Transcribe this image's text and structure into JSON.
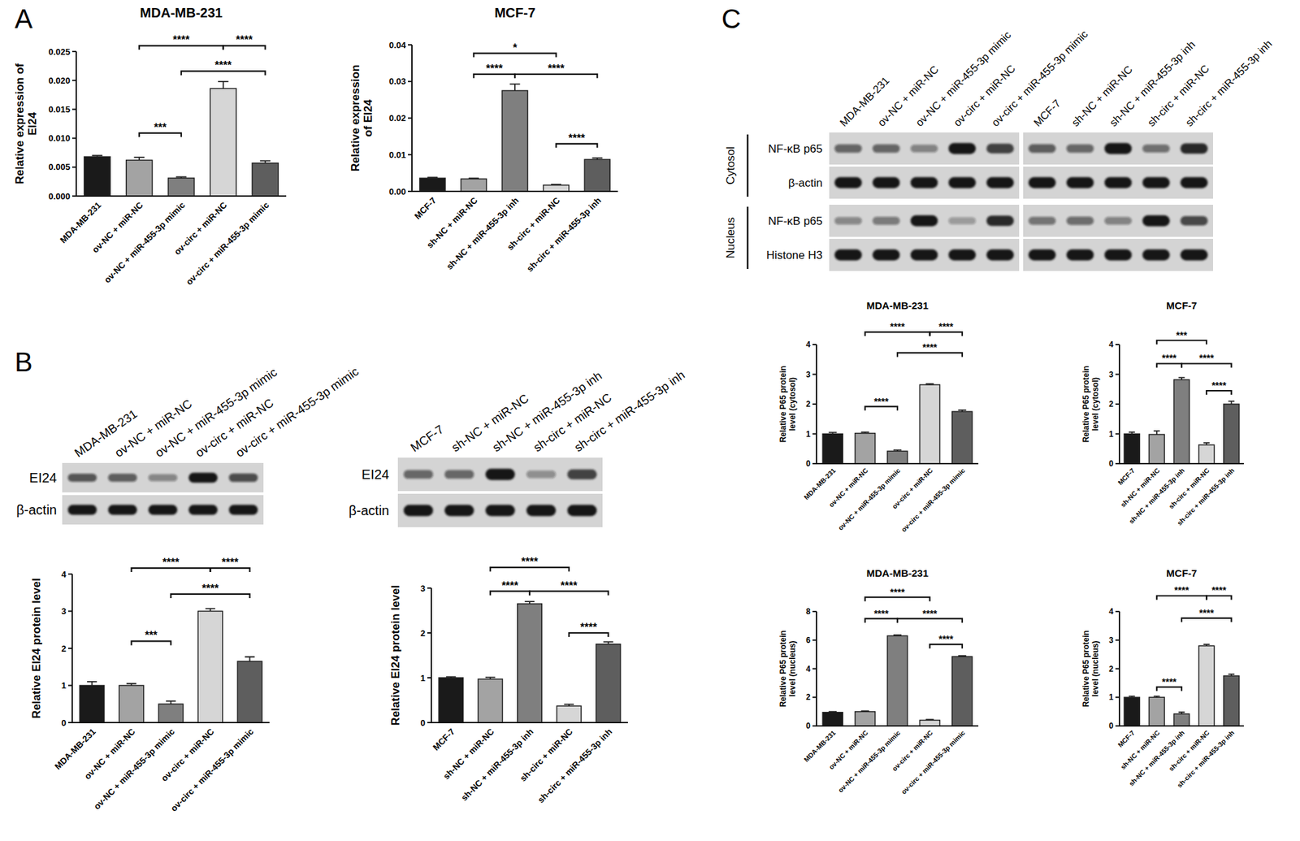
{
  "panels": [
    "A",
    "B",
    "C"
  ],
  "chart_data": [
    {
      "type": "bar",
      "title": "MDA-MB-231",
      "y_label": "Relative expression of\nEI24",
      "categories": [
        "MDA-MB-231",
        "ov-NC + miR-NC",
        "ov-NC + miR-455-3p mimic",
        "ov-circ + miR-NC",
        "ov-circ + miR-455-3p mimic"
      ],
      "values": [
        0.0068,
        0.0062,
        0.0031,
        0.0186,
        0.0057
      ],
      "errors": [
        0.0002,
        0.0005,
        0.0002,
        0.0012,
        0.0004
      ],
      "colors": [
        "#1a1a1a",
        "#a3a3a3",
        "#7f7f7f",
        "#d6d6d6",
        "#5e5e5e"
      ],
      "ylim": [
        0,
        0.025
      ],
      "yticks": [
        {
          "value": 0,
          "label": "0.000"
        },
        {
          "value": 0.005,
          "label": "0.005"
        },
        {
          "value": 0.01,
          "label": "0.010"
        },
        {
          "value": 0.015,
          "label": "0.015"
        },
        {
          "value": 0.02,
          "label": "0.020"
        },
        {
          "value": 0.025,
          "label": "0.025"
        }
      ],
      "annotations": [
        {
          "from": 1,
          "to": 3,
          "y": 0.026,
          "label": "****"
        },
        {
          "from": 3,
          "to": 4,
          "y": 0.026,
          "label": "****"
        },
        {
          "from": 2,
          "to": 4,
          "y": 0.0216,
          "label": "****"
        },
        {
          "from": 1,
          "to": 2,
          "y": 0.0109,
          "label": "***"
        }
      ]
    },
    {
      "type": "bar",
      "title": "MCF-7",
      "y_label": "Relative expression\nof EI24",
      "categories": [
        "MCF-7",
        "sh-NC + miR-NC",
        "sh-NC + miR-455-3p inh",
        "sh-circ + miR-NC",
        "sh-circ + miR-455-3p inh"
      ],
      "values": [
        0.0036,
        0.0034,
        0.0275,
        0.0017,
        0.0087
      ],
      "errors": [
        0.0002,
        0.0002,
        0.0018,
        0.0002,
        0.0004
      ],
      "colors": [
        "#1a1a1a",
        "#a3a3a3",
        "#7f7f7f",
        "#d6d6d6",
        "#5e5e5e"
      ],
      "ylim": [
        0,
        0.04
      ],
      "yticks": [
        {
          "value": 0,
          "label": "0.00"
        },
        {
          "value": 0.01,
          "label": "0.01"
        },
        {
          "value": 0.02,
          "label": "0.02"
        },
        {
          "value": 0.03,
          "label": "0.03"
        },
        {
          "value": 0.04,
          "label": "0.04"
        }
      ],
      "annotations": [
        {
          "from": 1,
          "to": 3,
          "y": 0.0377,
          "label": "*"
        },
        {
          "from": 1,
          "to": 2,
          "y": 0.032,
          "label": "****"
        },
        {
          "from": 2,
          "to": 4,
          "y": 0.032,
          "label": "****"
        },
        {
          "from": 3,
          "to": 4,
          "y": 0.013,
          "label": "****"
        }
      ]
    },
    {
      "type": "bar",
      "y_label": "Relative EI24 protein level",
      "categories": [
        "MDA-MB-231",
        "ov-NC + miR-NC",
        "ov-NC + miR-455-3p mimic",
        "ov-circ + miR-NC",
        "ov-circ + miR-455-3p mimic"
      ],
      "values": [
        1.0,
        1.0,
        0.5,
        3.0,
        1.65
      ],
      "errors": [
        0.1,
        0.05,
        0.08,
        0.07,
        0.12
      ],
      "colors": [
        "#1a1a1a",
        "#a3a3a3",
        "#7f7f7f",
        "#d6d6d6",
        "#5e5e5e"
      ],
      "ylim": [
        0,
        4
      ],
      "yticks": [
        0,
        1,
        2,
        3,
        4
      ],
      "annotations": [
        {
          "from": 1,
          "to": 3,
          "y": 4.16,
          "label": "****"
        },
        {
          "from": 3,
          "to": 4,
          "y": 4.16,
          "label": "****"
        },
        {
          "from": 2,
          "to": 4,
          "y": 3.46,
          "label": "****"
        },
        {
          "from": 1,
          "to": 2,
          "y": 2.19,
          "label": "***"
        }
      ]
    },
    {
      "type": "bar",
      "y_label": "Relative EI24 protein level",
      "categories": [
        "MCF-7",
        "sh-NC + miR-NC",
        "sh-NC + miR-455-3p inh",
        "sh-circ + miR-NC",
        "sh-circ + miR-455-3p inh"
      ],
      "values": [
        1.0,
        0.97,
        2.65,
        0.37,
        1.75
      ],
      "errors": [
        0.02,
        0.04,
        0.05,
        0.04,
        0.05
      ],
      "colors": [
        "#1a1a1a",
        "#a3a3a3",
        "#7f7f7f",
        "#d6d6d6",
        "#5e5e5e"
      ],
      "ylim": [
        0,
        3
      ],
      "yticks": [
        0,
        1,
        2,
        3
      ],
      "annotations": [
        {
          "from": 1,
          "to": 3,
          "y": 3.46,
          "label": "****"
        },
        {
          "from": 1,
          "to": 2,
          "y": 2.93,
          "label": "****"
        },
        {
          "from": 2,
          "to": 4,
          "y": 2.93,
          "label": "****"
        },
        {
          "from": 3,
          "to": 4,
          "y": 2.0,
          "label": "****"
        }
      ]
    },
    {
      "type": "bar",
      "title": "MDA-MB-231",
      "y_label": "Relative P65 protein\nlevel (cytosol)",
      "categories": [
        "MDA-MB-231",
        "ov-NC + miR-NC",
        "ov-NC + miR-455-3p mimic",
        "ov-circ + miR-NC",
        "ov-circ + miR-455-3p mimic"
      ],
      "values": [
        1.0,
        1.02,
        0.42,
        2.65,
        1.75
      ],
      "errors": [
        0.05,
        0.04,
        0.04,
        0.03,
        0.05
      ],
      "colors": [
        "#1a1a1a",
        "#a3a3a3",
        "#7f7f7f",
        "#d6d6d6",
        "#5e5e5e"
      ],
      "ylim": [
        0,
        4
      ],
      "yticks": [
        0,
        1,
        2,
        3,
        4
      ],
      "annotations": [
        {
          "from": 1,
          "to": 3,
          "y": 4.42,
          "label": "****"
        },
        {
          "from": 3,
          "to": 4,
          "y": 4.42,
          "label": "****"
        },
        {
          "from": 2,
          "to": 4,
          "y": 3.72,
          "label": "****"
        },
        {
          "from": 1,
          "to": 2,
          "y": 1.92,
          "label": "****"
        }
      ]
    },
    {
      "type": "bar",
      "title": "MCF-7",
      "y_label": "Relative P65 protein\nlevel (cytosol)",
      "categories": [
        "MCF-7",
        "sh-NC + miR-NC",
        "sh-NC + miR-455-3p inh",
        "sh-circ + miR-NC",
        "sh-circ + miR-455-3p inh"
      ],
      "values": [
        1.0,
        0.98,
        2.82,
        0.63,
        2.0
      ],
      "errors": [
        0.06,
        0.12,
        0.07,
        0.07,
        0.1
      ],
      "colors": [
        "#1a1a1a",
        "#a3a3a3",
        "#7f7f7f",
        "#d6d6d6",
        "#5e5e5e"
      ],
      "ylim": [
        0,
        4
      ],
      "yticks": [
        0,
        1,
        2,
        3,
        4
      ],
      "annotations": [
        {
          "from": 1,
          "to": 3,
          "y": 4.14,
          "label": "***"
        },
        {
          "from": 1,
          "to": 2,
          "y": 3.36,
          "label": "****"
        },
        {
          "from": 2,
          "to": 4,
          "y": 3.36,
          "label": "****"
        },
        {
          "from": 3,
          "to": 4,
          "y": 2.45,
          "label": "****"
        }
      ]
    },
    {
      "type": "bar",
      "title": "MDA-MB-231",
      "y_label": "Relative P65 protein\nlevel (nucleus)",
      "categories": [
        "MDA-MB-231",
        "ov-NC + miR-NC",
        "ov-NC + miR-455-3p mimic",
        "ov-circ + miR-NC",
        "ov-circ + miR-455-3p mimic"
      ],
      "values": [
        0.95,
        1.0,
        6.3,
        0.4,
        4.85
      ],
      "errors": [
        0.05,
        0.05,
        0.05,
        0.05,
        0.05
      ],
      "colors": [
        "#1a1a1a",
        "#a3a3a3",
        "#7f7f7f",
        "#d6d6d6",
        "#5e5e5e"
      ],
      "ylim": [
        0,
        8
      ],
      "yticks": [
        0,
        2,
        4,
        6,
        8
      ],
      "annotations": [
        {
          "from": 1,
          "to": 3,
          "y": 9.0,
          "label": "****"
        },
        {
          "from": 1,
          "to": 2,
          "y": 7.5,
          "label": "****"
        },
        {
          "from": 2,
          "to": 4,
          "y": 7.5,
          "label": "****"
        },
        {
          "from": 3,
          "to": 4,
          "y": 5.7,
          "label": "****"
        }
      ]
    },
    {
      "type": "bar",
      "title": "MCF-7",
      "y_label": "Relative P65 protein\nlevel (nucleus)",
      "categories": [
        "MCF-7",
        "sh-NC + miR-NC",
        "sh-NC + miR-455-3p inh",
        "sh-circ + miR-NC",
        "sh-circ + miR-455-3p inh"
      ],
      "values": [
        1.0,
        1.0,
        0.42,
        2.8,
        1.75
      ],
      "errors": [
        0.04,
        0.04,
        0.06,
        0.05,
        0.06
      ],
      "colors": [
        "#1a1a1a",
        "#a3a3a3",
        "#7f7f7f",
        "#d6d6d6",
        "#5e5e5e"
      ],
      "ylim": [
        0,
        4
      ],
      "yticks": [
        0,
        1,
        2,
        3,
        4
      ],
      "annotations": [
        {
          "from": 1,
          "to": 3,
          "y": 4.55,
          "label": "****"
        },
        {
          "from": 3,
          "to": 4,
          "y": 4.55,
          "label": "****"
        },
        {
          "from": 2,
          "to": 4,
          "y": 3.77,
          "label": "****"
        },
        {
          "from": 1,
          "to": 2,
          "y": 1.36,
          "label": "****"
        }
      ]
    }
  ],
  "blots": [
    {
      "lane_groups": [
        [
          "MDA-MB-231",
          "ov-NC + miR-NC",
          "ov-NC + miR-455-3p mimic",
          "ov-circ + miR-NC",
          "ov-circ + miR-455-3p mimic"
        ]
      ],
      "sections": [
        {
          "rows": [
            {
              "label": "EI24",
              "bands": [
                [
                  1.0,
                  0.9,
                  0.45,
                  1.8,
                  1.1
                ]
              ]
            },
            {
              "label": "β-actin",
              "bands": [
                [
                  1,
                  1,
                  1,
                  1,
                  1
                ]
              ]
            }
          ]
        }
      ]
    },
    {
      "lane_groups": [
        [
          "MCF-7",
          "sh-NC + miR-NC",
          "sh-NC + miR-455-3p inh",
          "sh-circ + miR-NC",
          "sh-circ + miR-455-3p inh"
        ]
      ],
      "sections": [
        {
          "rows": [
            {
              "label": "EI24",
              "bands": [
                [
                  0.8,
                  0.8,
                  1.8,
                  0.35,
                  1.3
                ]
              ]
            },
            {
              "label": "β-actin",
              "bands": [
                [
                  1,
                  1,
                  1,
                  1,
                  1
                ]
              ]
            }
          ]
        }
      ]
    },
    {
      "lane_groups": [
        [
          "MDA-MB-231",
          "ov-NC + miR-NC",
          "ov-NC + miR-455-3p mimic",
          "ov-circ + miR-NC",
          "ov-circ + miR-455-3p mimic"
        ],
        [
          "MCF-7",
          "sh-NC + miR-NC",
          "sh-NC + miR-455-3p inh",
          "sh-circ + miR-NC",
          "sh-circ + miR-455-3p inh"
        ]
      ],
      "sections": [
        {
          "label": "Cytosol",
          "rows": [
            {
              "label": "NF-κB p65",
              "bands": [
                [
                  1.0,
                  1.0,
                  0.6,
                  2.2,
                  1.6
                ],
                [
                  0.9,
                  0.8,
                  1.8,
                  0.7,
                  1.6
                ]
              ]
            },
            {
              "label": "β-actin",
              "bands": [
                [
                  1,
                  1,
                  1,
                  1,
                  1
                ],
                [
                  1,
                  1,
                  1,
                  1,
                  1
                ]
              ]
            }
          ]
        },
        {
          "label": "Nucleus",
          "rows": [
            {
              "label": "NF-κB p65",
              "bands": [
                [
                  0.6,
                  0.8,
                  2.5,
                  0.3,
                  2.2
                ],
                [
                  0.8,
                  0.9,
                  0.6,
                  2.2,
                  1.4
                ]
              ]
            },
            {
              "label": "Histone H3",
              "bands": [
                [
                  1,
                  1,
                  1,
                  1,
                  1
                ],
                [
                  1,
                  1,
                  1,
                  1,
                  1
                ]
              ]
            }
          ]
        }
      ]
    }
  ]
}
